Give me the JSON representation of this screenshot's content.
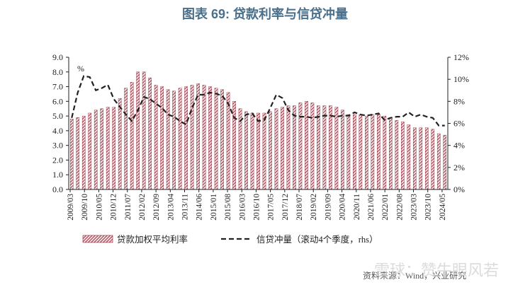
{
  "title": "图表 69: 贷款利率与信贷冲量",
  "chart_data": {
    "type": "bar+line",
    "unit_label": "%",
    "y_left": {
      "ticks": [
        "0.0",
        "1.0",
        "2.0",
        "3.0",
        "4.0",
        "5.0",
        "6.0",
        "7.0",
        "8.0",
        "9.0"
      ],
      "min": 0,
      "max": 9
    },
    "y_right": {
      "ticks": [
        "0%",
        "2%",
        "4%",
        "6%",
        "8%",
        "10%",
        "12%"
      ],
      "min": 0,
      "max": 12
    },
    "x_tick_labels": [
      "2009/03",
      "2009/10",
      "2010/05",
      "2010/12",
      "2011/07",
      "2012/02",
      "2012/09",
      "2013/04",
      "2013/11",
      "2014/06",
      "2015/01",
      "2015/08",
      "2016/03",
      "2016/10",
      "2017/05",
      "2017/12",
      "2018/07",
      "2019/02",
      "2019/09",
      "2020/04",
      "2020/11",
      "2021/06",
      "2022/01",
      "2022/08",
      "2023/03",
      "2023/10",
      "2024/05"
    ],
    "quarters": [
      "2009Q1",
      "2009Q2",
      "2009Q3",
      "2009Q4",
      "2010Q1",
      "2010Q2",
      "2010Q3",
      "2010Q4",
      "2011Q1",
      "2011Q2",
      "2011Q3",
      "2011Q4",
      "2012Q1",
      "2012Q2",
      "2012Q3",
      "2012Q4",
      "2013Q1",
      "2013Q2",
      "2013Q3",
      "2013Q4",
      "2014Q1",
      "2014Q2",
      "2014Q3",
      "2014Q4",
      "2015Q1",
      "2015Q2",
      "2015Q3",
      "2015Q4",
      "2016Q1",
      "2016Q2",
      "2016Q3",
      "2016Q4",
      "2017Q1",
      "2017Q2",
      "2017Q3",
      "2017Q4",
      "2018Q1",
      "2018Q2",
      "2018Q3",
      "2018Q4",
      "2019Q1",
      "2019Q2",
      "2019Q3",
      "2019Q4",
      "2020Q1",
      "2020Q2",
      "2020Q3",
      "2020Q4",
      "2021Q1",
      "2021Q2",
      "2021Q3",
      "2021Q4",
      "2022Q1",
      "2022Q2",
      "2022Q3",
      "2022Q4",
      "2023Q1",
      "2023Q2",
      "2023Q3",
      "2023Q4",
      "2024Q1",
      "2024Q2",
      "2024Q3"
    ],
    "series": [
      {
        "name": "贷款加权平均利率",
        "kind": "bar",
        "axis": "left",
        "color": "#8b2332",
        "values": [
          4.8,
          4.9,
          5.0,
          5.2,
          5.4,
          5.5,
          5.6,
          5.6,
          6.2,
          6.9,
          7.3,
          8.0,
          8.0,
          7.6,
          7.1,
          7.0,
          6.8,
          6.7,
          6.9,
          7.0,
          7.1,
          7.2,
          7.1,
          7.0,
          6.9,
          6.8,
          6.6,
          6.0,
          5.5,
          5.3,
          5.2,
          5.2,
          5.2,
          5.3,
          5.5,
          5.6,
          5.7,
          5.7,
          5.9,
          6.0,
          5.9,
          5.7,
          5.7,
          5.7,
          5.6,
          5.4,
          5.1,
          5.1,
          5.1,
          5.0,
          5.1,
          5.1,
          5.0,
          4.9,
          4.7,
          4.6,
          4.4,
          4.2,
          4.2,
          4.2,
          4.1,
          3.8,
          3.7
        ]
      },
      {
        "name": "信贷冲量（滚动4个季度，rhs）",
        "kind": "line",
        "axis": "right",
        "color": "#222222",
        "values": [
          6.5,
          8.8,
          10.3,
          10.2,
          9.0,
          9.2,
          9.5,
          8.2,
          7.5,
          6.8,
          6.2,
          7.2,
          8.4,
          8.2,
          7.8,
          7.4,
          6.8,
          6.6,
          6.2,
          5.9,
          7.4,
          8.6,
          8.6,
          8.8,
          8.7,
          8.5,
          7.8,
          6.5,
          6.2,
          6.8,
          6.9,
          6.2,
          6.3,
          7.4,
          8.6,
          8.3,
          7.2,
          6.7,
          6.6,
          6.6,
          6.5,
          6.6,
          6.7,
          6.7,
          6.6,
          6.7,
          6.7,
          7.0,
          6.8,
          6.7,
          6.8,
          6.9,
          6.3,
          6.5,
          6.6,
          6.6,
          7.0,
          6.6,
          6.8,
          6.6,
          6.5,
          5.8,
          5.8
        ]
      }
    ],
    "legend": [
      "贷款加权平均利率",
      "信贷冲量（滚动4个季度，rhs）"
    ],
    "legend_position": "bottom"
  },
  "source_text": "资料来源：Wind，兴业研究",
  "watermark": "雪球：赞牛眼风若"
}
